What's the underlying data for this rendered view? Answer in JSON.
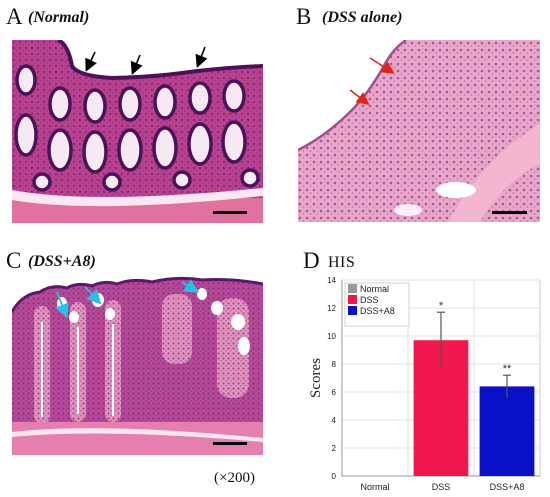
{
  "figure": {
    "magnification": "(×200)"
  },
  "panels": {
    "a": {
      "letter": "A",
      "condition": "(Normal)"
    },
    "b": {
      "letter": "B",
      "condition": "(DSS alone)"
    },
    "c": {
      "letter": "C",
      "condition": "(DSS+A8)"
    },
    "d": {
      "letter": "D",
      "title": "HIS"
    }
  },
  "colors": {
    "arrow_a": "#000000",
    "arrow_b": "#e2231a",
    "arrow_c": "#29c0e8"
  },
  "chart_data": {
    "type": "bar",
    "title": "HIS",
    "categories": [
      "Normal",
      "DSS",
      "DSS+A8"
    ],
    "values": [
      0,
      9.7,
      6.4
    ],
    "error": [
      0,
      2.0,
      0.8
    ],
    "significance": [
      "",
      "*",
      "**"
    ],
    "bar_colors": [
      "#9a9a9a",
      "#f0184c",
      "#0a10c8"
    ],
    "xlabel": "",
    "ylabel": "Scores",
    "ylim": [
      0,
      14
    ],
    "yticks": [
      0,
      2,
      4,
      6,
      8,
      10,
      12,
      14
    ],
    "grid": true,
    "legend": {
      "placement": "top-left",
      "entries": [
        {
          "label": "Normal",
          "color": "#9a9a9a"
        },
        {
          "label": "DSS",
          "color": "#f0184c"
        },
        {
          "label": "DSS+A8",
          "color": "#0a10c8"
        }
      ]
    }
  }
}
